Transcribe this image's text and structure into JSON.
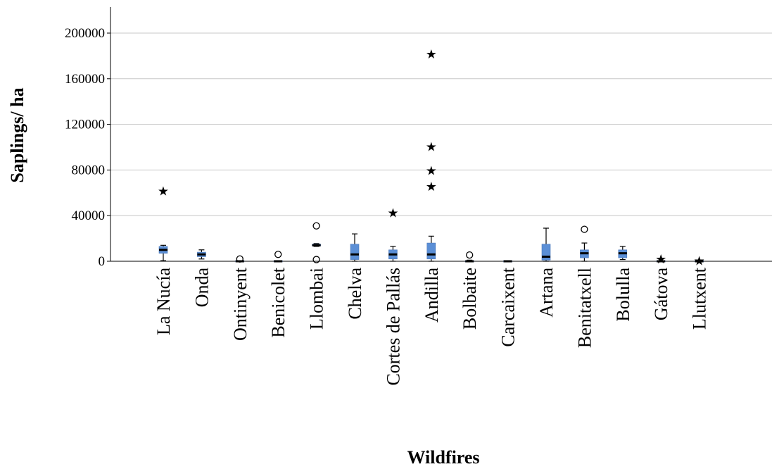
{
  "chart_data": {
    "type": "boxplot",
    "xlabel": "Wildfires",
    "ylabel": "Saplings/ ha",
    "ylim": [
      0,
      200000
    ],
    "yticks": [
      0,
      40000,
      80000,
      120000,
      160000,
      200000
    ],
    "ytick_labels": [
      "0",
      "40000",
      "80000",
      "120000",
      "160000",
      "200000"
    ],
    "grid": true,
    "box_color": "#5b8fd6",
    "categories": [
      "La Nucía",
      "Onda",
      "Ontinyent",
      "Benicolet",
      "Llombai",
      "Chelva",
      "Cortes de Pallás",
      "Andilla",
      "Bolbaite",
      "Carcaixent",
      "Artana",
      "Benitatxell",
      "Bolulla",
      "Gátova",
      "Llutxent"
    ],
    "boxes": [
      {
        "category": "La Nucía",
        "min": 500,
        "q1": 7000,
        "median": 10000,
        "q3": 13000,
        "max": 14000,
        "outliers": [],
        "extremes": [
          62000
        ]
      },
      {
        "category": "Onda",
        "min": 2000,
        "q1": 4000,
        "median": 6000,
        "q3": 8000,
        "max": 10000,
        "outliers": [],
        "extremes": []
      },
      {
        "category": "Ontinyent",
        "min": 0,
        "q1": 0,
        "median": 0,
        "q3": 0,
        "max": 0,
        "outliers": [
          2000
        ],
        "extremes": []
      },
      {
        "category": "Benicolet",
        "min": 0,
        "q1": 0,
        "median": 0,
        "q3": 0,
        "max": 0,
        "outliers": [
          6000
        ],
        "extremes": []
      },
      {
        "category": "Llombai",
        "min": 13000,
        "q1": 13500,
        "median": 14000,
        "q3": 15000,
        "max": 15500,
        "outliers": [
          31000,
          1500
        ],
        "extremes": []
      },
      {
        "category": "Chelva",
        "min": 0,
        "q1": 1500,
        "median": 6000,
        "q3": 15000,
        "max": 24000,
        "outliers": [],
        "extremes": []
      },
      {
        "category": "Cortes de Pallás",
        "min": 0,
        "q1": 2000,
        "median": 6000,
        "q3": 10000,
        "max": 13000,
        "outliers": [],
        "extremes": [
          43000
        ]
      },
      {
        "category": "Andilla",
        "min": 0,
        "q1": 2000,
        "median": 6000,
        "q3": 16000,
        "max": 22000,
        "outliers": [],
        "extremes": [
          182000,
          101000,
          80000,
          66000
        ]
      },
      {
        "category": "Bolbaite",
        "min": 0,
        "q1": 0,
        "median": 0,
        "q3": 500,
        "max": 1000,
        "outliers": [
          5500
        ],
        "extremes": []
      },
      {
        "category": "Carcaixent",
        "min": 0,
        "q1": 0,
        "median": 0,
        "q3": 500,
        "max": 500,
        "outliers": [],
        "extremes": []
      },
      {
        "category": "Artana",
        "min": 0,
        "q1": 1000,
        "median": 4000,
        "q3": 15000,
        "max": 29000,
        "outliers": [],
        "extremes": []
      },
      {
        "category": "Benitatxell",
        "min": 0,
        "q1": 3000,
        "median": 7000,
        "q3": 10000,
        "max": 16000,
        "outliers": [
          28000
        ],
        "extremes": []
      },
      {
        "category": "Bolulla",
        "min": 1500,
        "q1": 3000,
        "median": 7000,
        "q3": 10000,
        "max": 13000,
        "outliers": [],
        "extremes": []
      },
      {
        "category": "Gátova",
        "min": 0,
        "q1": 0,
        "median": 0,
        "q3": 0,
        "max": 0,
        "outliers": [],
        "extremes": [
          2500
        ]
      },
      {
        "category": "Llutxent",
        "min": 0,
        "q1": 0,
        "median": 0,
        "q3": 0,
        "max": 0,
        "outliers": [],
        "extremes": [
          1000
        ]
      }
    ]
  }
}
